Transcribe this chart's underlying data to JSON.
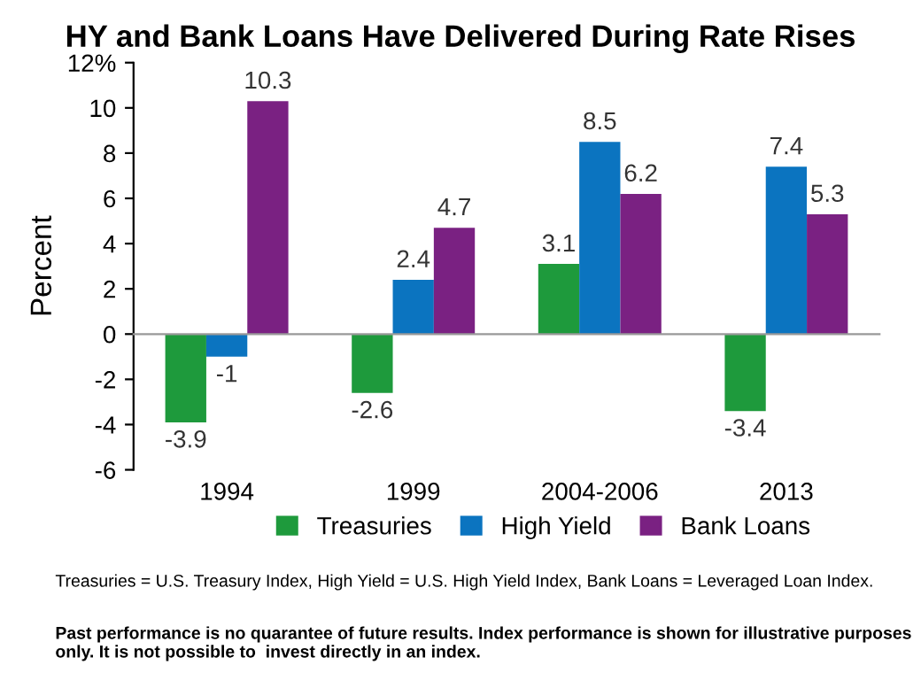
{
  "chart_data": {
    "type": "bar",
    "title": "HY and Bank Loans Have Delivered During Rate Rises",
    "ylabel": "Percent",
    "categories": [
      "1994",
      "1999",
      "2004-2006",
      "2013"
    ],
    "series": [
      {
        "name": "Treasuries",
        "color": "#1e9a3c",
        "values": [
          -3.9,
          -2.6,
          3.1,
          -3.4
        ]
      },
      {
        "name": "High Yield",
        "color": "#0b74c0",
        "values": [
          -1,
          2.4,
          8.5,
          7.4
        ]
      },
      {
        "name": "Bank Loans",
        "color": "#7a2182",
        "values": [
          10.3,
          4.7,
          6.2,
          5.3
        ]
      }
    ],
    "ylim": [
      -6,
      12
    ],
    "yticks": [
      -6,
      -4,
      -2,
      0,
      2,
      4,
      6,
      8,
      10,
      {
        "value": 12,
        "label": "12%"
      }
    ],
    "data_labels": true,
    "legend": "bottom",
    "annotations": [
      "Treasuries = U.S. Treasury Index, High Yield = U.S. High Yield Index, Bank Loans = Leveraged Loan Index.",
      "Past performance is no quarantee of future results. Index performance is shown for illustrative purposes only. It is not possible to  invest directly in an index."
    ]
  }
}
